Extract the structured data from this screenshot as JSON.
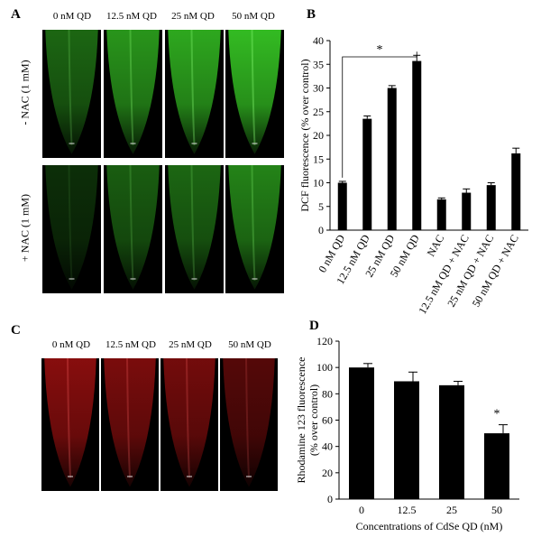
{
  "panels": {
    "A": {
      "label": "A",
      "columns": [
        "0 nM QD",
        "12.5 nM QD",
        "25 nM QD",
        "50 nM QD"
      ],
      "rows": [
        "- NAC (1 mM)",
        "+ NAC (1 mM)"
      ],
      "fluorescence_color": "#3cdc28"
    },
    "C": {
      "label": "C",
      "columns": [
        "0 nM QD",
        "12.5 nM QD",
        "25 nM QD",
        "50 nM QD"
      ],
      "fluorescence_color": "#c81414"
    },
    "B": {
      "label": "B"
    },
    "D": {
      "label": "D"
    }
  },
  "chart_data": [
    {
      "type": "bar",
      "panel": "B",
      "categories": [
        "0 nM QD",
        "12.5 nM QD",
        "25 nM QD",
        "50 nM QD",
        "NAC",
        "12.5 nM QD + NAC",
        "25 nM QD + NAC",
        "50 nM QD + NAC"
      ],
      "values": [
        10.0,
        23.5,
        30.0,
        35.7,
        6.5,
        7.9,
        9.5,
        16.2
      ],
      "errors": [
        0.3,
        0.6,
        0.5,
        1.2,
        0.3,
        0.8,
        0.5,
        1.1
      ],
      "ylabel": "DCF fluorescence (% over control)",
      "xlabel": "",
      "ylim": [
        0,
        40
      ],
      "yticks": [
        0,
        5,
        10,
        15,
        20,
        25,
        30,
        35,
        40
      ],
      "annotation": "*",
      "bar_color": "#000000"
    },
    {
      "type": "bar",
      "panel": "D",
      "categories": [
        "0",
        "12.5",
        "25",
        "50"
      ],
      "values": [
        100,
        89.5,
        86.5,
        50
      ],
      "errors": [
        3,
        7,
        3,
        6.5
      ],
      "ylabel": "Rhodamine 123 fluorescence (% over control)",
      "ylabel_lines": [
        "Rhodamine 123 fluorescence",
        "(% over control)"
      ],
      "xlabel": "Concentrations of CdSe QD (nM)",
      "ylim": [
        0,
        120
      ],
      "yticks": [
        0,
        20,
        40,
        60,
        80,
        100,
        120
      ],
      "annotation": "*",
      "bar_color": "#000000"
    }
  ]
}
